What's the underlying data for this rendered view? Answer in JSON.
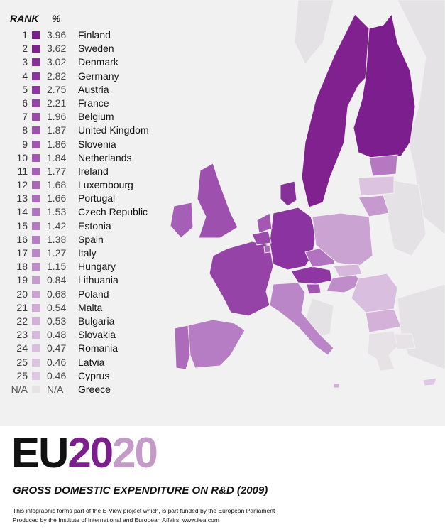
{
  "chart_data": {
    "type": "table",
    "title": "GROSS DOMESTIC EXPENDITURE ON R&D (2009)",
    "columns": [
      "RANK",
      "%"
    ],
    "rows": [
      {
        "rank": "1",
        "value": "3.96",
        "country": "Finland",
        "color": "#7d1e8f"
      },
      {
        "rank": "2",
        "value": "3.62",
        "country": "Sweden",
        "color": "#80218f"
      },
      {
        "rank": "3",
        "value": "3.02",
        "country": "Denmark",
        "color": "#87309a"
      },
      {
        "rank": "4",
        "value": "2.82",
        "country": "Germany",
        "color": "#8b33a0"
      },
      {
        "rank": "5",
        "value": "2.75",
        "country": "Austria",
        "color": "#8e37a3"
      },
      {
        "rank": "6",
        "value": "2.21",
        "country": "France",
        "color": "#9543a7"
      },
      {
        "rank": "7",
        "value": "1.96",
        "country": "Belgium",
        "color": "#9a4aab"
      },
      {
        "rank": "8",
        "value": "1.87",
        "country": "United Kingdom",
        "color": "#9d50ae"
      },
      {
        "rank": "9",
        "value": "1.86",
        "country": "Slovenia",
        "color": "#a055b1"
      },
      {
        "rank": "10",
        "value": "1.84",
        "country": "Netherlands",
        "color": "#a359b3"
      },
      {
        "rank": "11",
        "value": "1.77",
        "country": "Ireland",
        "color": "#a65fb6"
      },
      {
        "rank": "12",
        "value": "1.68",
        "country": "Luxembourg",
        "color": "#aa66b9"
      },
      {
        "rank": "13",
        "value": "1.66",
        "country": "Portugal",
        "color": "#ad6bbb"
      },
      {
        "rank": "14",
        "value": "1.53",
        "country": "Czech Republic",
        "color": "#b172bf"
      },
      {
        "rank": "15",
        "value": "1.42",
        "country": "Estonia",
        "color": "#b579c2"
      },
      {
        "rank": "16",
        "value": "1.38",
        "country": "Spain",
        "color": "#b77dc4"
      },
      {
        "rank": "17",
        "value": "1.27",
        "country": "Italy",
        "color": "#bb86c7"
      },
      {
        "rank": "18",
        "value": "1.15",
        "country": "Hungary",
        "color": "#bf8dca"
      },
      {
        "rank": "19",
        "value": "0.84",
        "country": "Lithuania",
        "color": "#c69acf"
      },
      {
        "rank": "20",
        "value": "0.68",
        "country": "Poland",
        "color": "#cba3d3"
      },
      {
        "rank": "21",
        "value": "0.54",
        "country": "Malta",
        "color": "#d0acd7"
      },
      {
        "rank": "22",
        "value": "0.53",
        "country": "Bulgaria",
        "color": "#d3b1d9"
      },
      {
        "rank": "23",
        "value": "0.48",
        "country": "Slovakia",
        "color": "#d6b8dc"
      },
      {
        "rank": "24",
        "value": "0.47",
        "country": "Romania",
        "color": "#d9bedf"
      },
      {
        "rank": "25",
        "value": "0.46",
        "country": "Latvia",
        "color": "#dcc4e1"
      },
      {
        "rank": "25",
        "value": "0.46",
        "country": "Cyprus",
        "color": "#dec8e3"
      },
      {
        "rank": "N/A",
        "value": "N/A",
        "country": "Greece",
        "color": "#e6e2e6"
      }
    ]
  },
  "legend_header": {
    "rank": "RANK",
    "percent": "%"
  },
  "logo": {
    "prefix": "EU",
    "year_part1": "20",
    "year_part2": "20"
  },
  "subtitle": "GROSS DOMESTIC EXPENDITURE ON R&D (2009)",
  "footer": {
    "line1": "This infographic forms part of the E-View project which, is part funded by the European Parliament",
    "line2": "Produced by the Institute of International and European Affairs.  www.iiea.com"
  },
  "colors": {
    "background": "#f2f1f1",
    "non_eu_land": "#e4e2e4",
    "accent_dark": "#7d1e8f",
    "accent_light": "#c49ac9"
  }
}
